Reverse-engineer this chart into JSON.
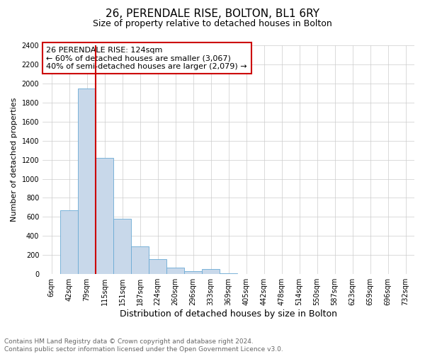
{
  "title": "26, PERENDALE RISE, BOLTON, BL1 6RY",
  "subtitle": "Size of property relative to detached houses in Bolton",
  "xlabel": "Distribution of detached houses by size in Bolton",
  "ylabel": "Number of detached properties",
  "property_label": "26 PERENDALE RISE: 124sqm",
  "annotation_line1": "← 60% of detached houses are smaller (3,067)",
  "annotation_line2": "40% of semi-detached houses are larger (2,079) →",
  "footer_line1": "Contains HM Land Registry data © Crown copyright and database right 2024.",
  "footer_line2": "Contains public sector information licensed under the Open Government Licence v3.0.",
  "bar_color": "#c8d8ea",
  "bar_edge_color": "#6aaad4",
  "vline_color": "#cc0000",
  "annotation_box_edgecolor": "#cc0000",
  "categories": [
    "6sqm",
    "42sqm",
    "79sqm",
    "115sqm",
    "151sqm",
    "187sqm",
    "224sqm",
    "260sqm",
    "296sqm",
    "333sqm",
    "369sqm",
    "405sqm",
    "442sqm",
    "478sqm",
    "514sqm",
    "550sqm",
    "587sqm",
    "623sqm",
    "659sqm",
    "696sqm",
    "732sqm"
  ],
  "values": [
    0,
    670,
    1950,
    1220,
    580,
    290,
    155,
    70,
    30,
    50,
    8,
    4,
    3,
    2,
    1,
    1,
    1,
    0,
    0,
    0,
    0
  ],
  "ylim": [
    0,
    2400
  ],
  "yticks": [
    0,
    200,
    400,
    600,
    800,
    1000,
    1200,
    1400,
    1600,
    1800,
    2000,
    2200,
    2400
  ],
  "vline_x_index": 2.5,
  "title_fontsize": 11,
  "subtitle_fontsize": 9,
  "xlabel_fontsize": 9,
  "ylabel_fontsize": 8,
  "tick_fontsize": 7,
  "annotation_fontsize": 8,
  "footer_fontsize": 6.5
}
